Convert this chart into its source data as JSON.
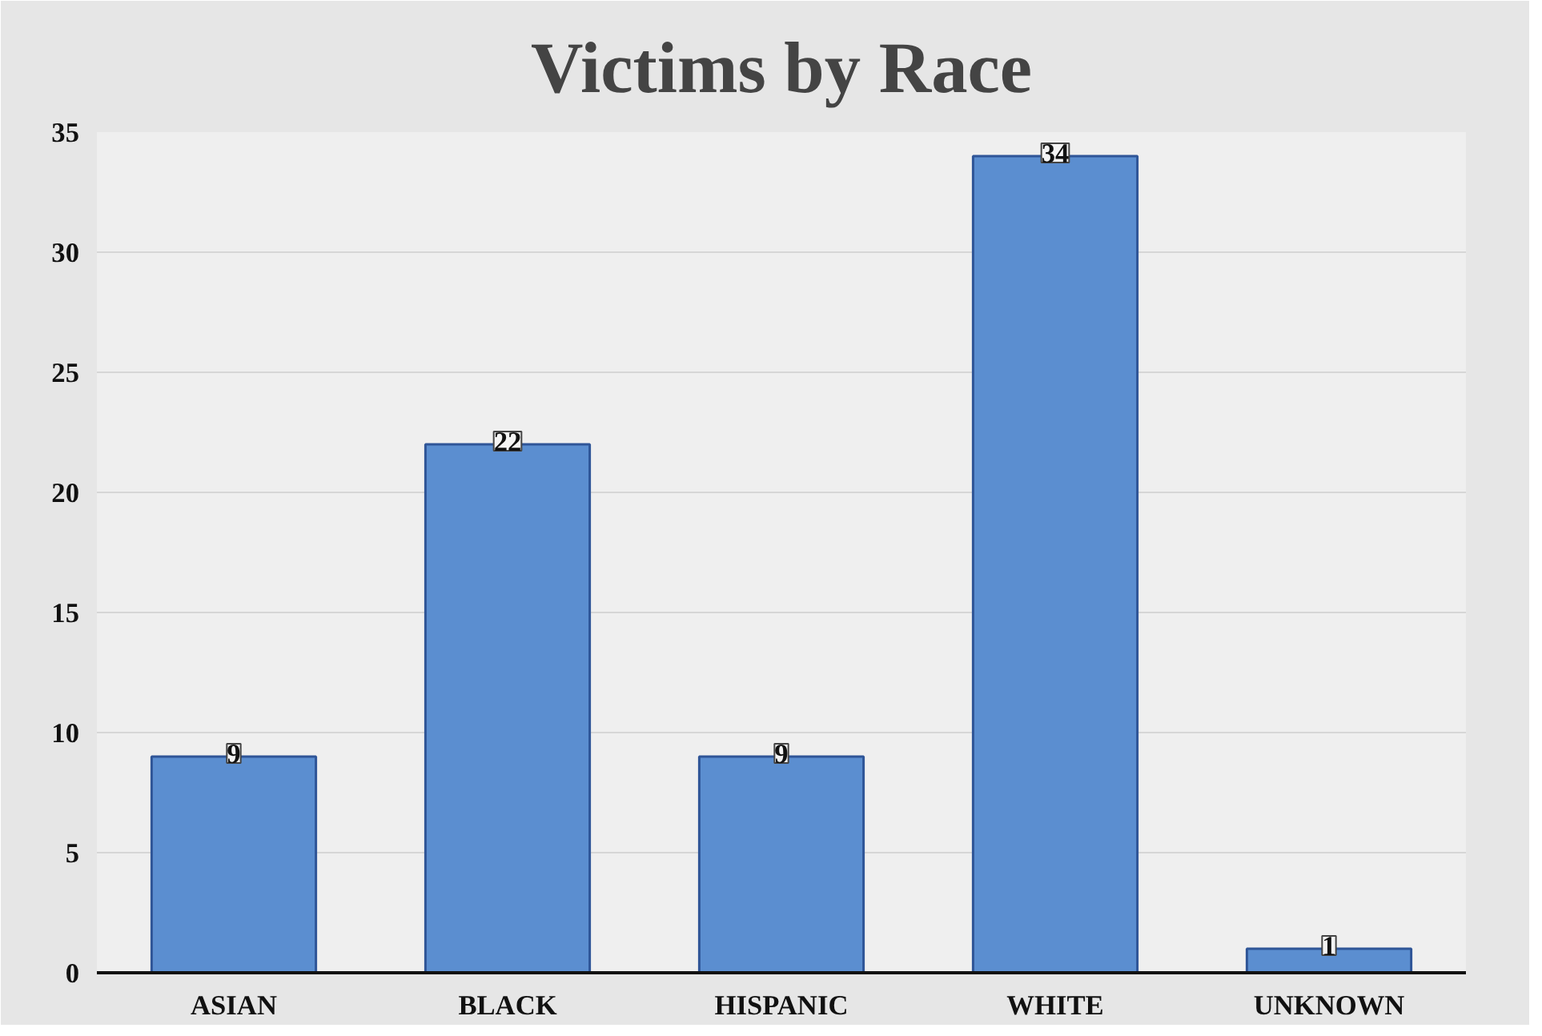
{
  "chart_data": {
    "type": "bar",
    "title": "Victims by Race",
    "categories": [
      "ASIAN",
      "BLACK",
      "HISPANIC",
      "WHITE",
      "UNKNOWN"
    ],
    "values": [
      9,
      22,
      9,
      34,
      1
    ],
    "color": "#5b8ed0",
    "ylim": [
      0,
      35
    ],
    "yticks": [
      0,
      5,
      10,
      15,
      20,
      25,
      30,
      35
    ],
    "grid": "y",
    "data_labels": true
  }
}
